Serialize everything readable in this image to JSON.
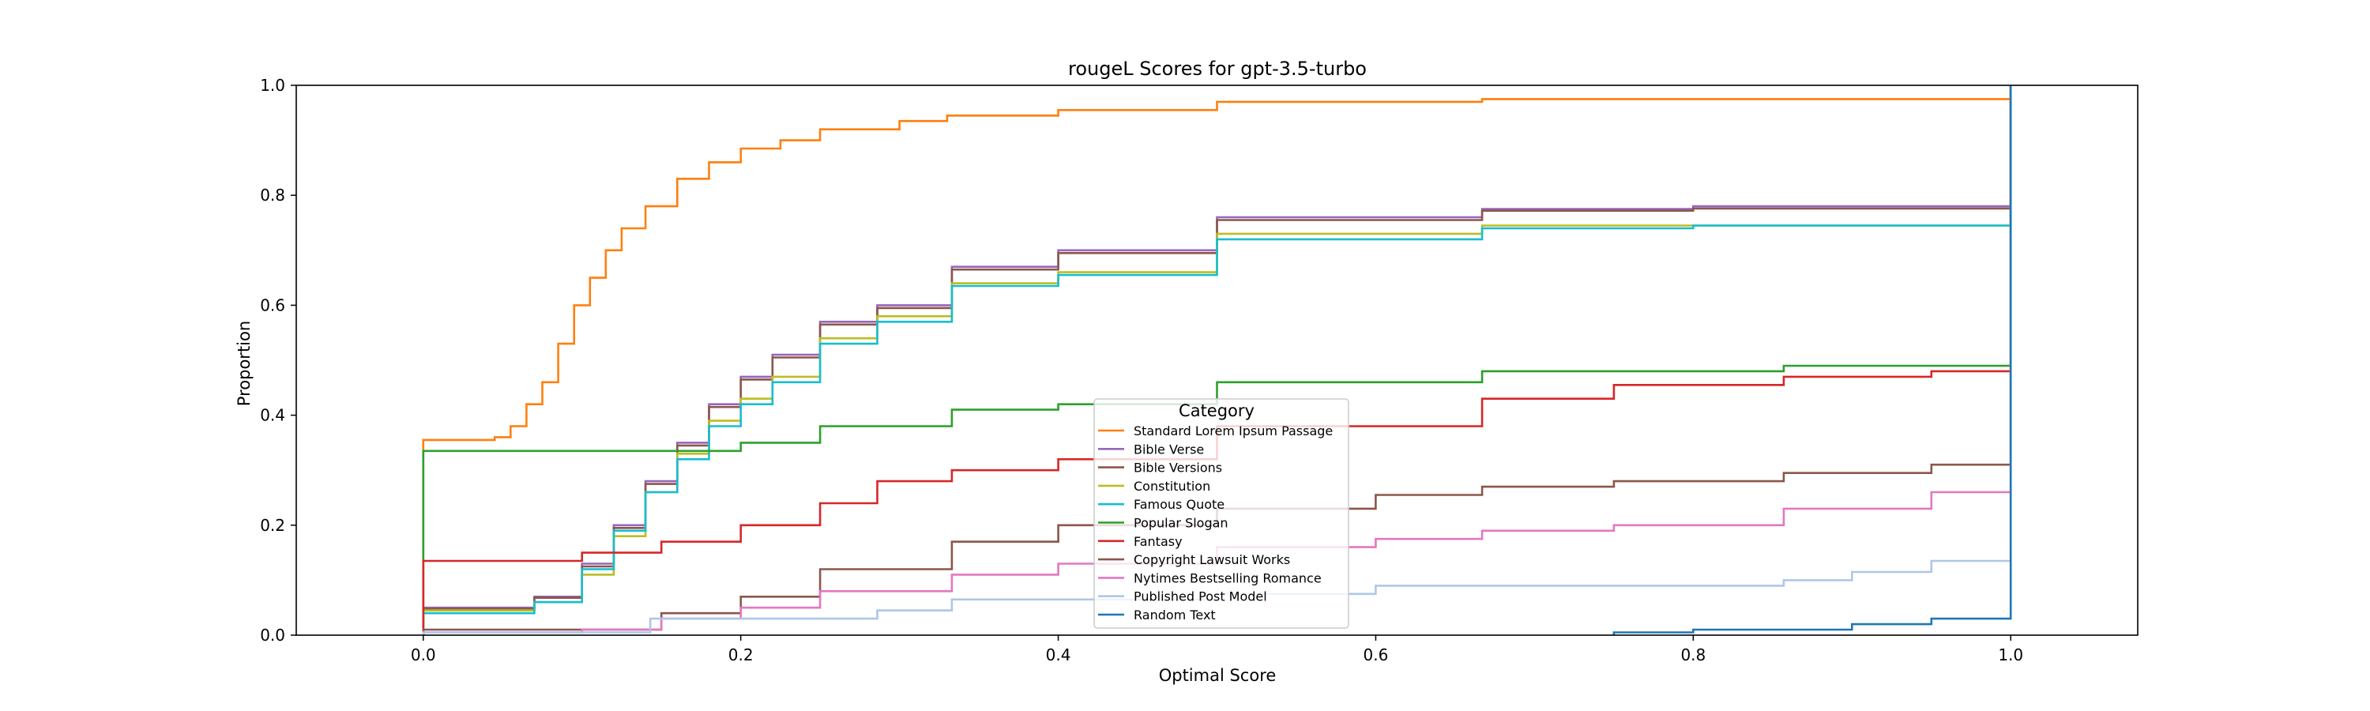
{
  "chart_data": {
    "type": "line",
    "title": "rougeL Scores for gpt-3.5-turbo",
    "xlabel": "Optimal Score",
    "ylabel": "Proportion",
    "xlim": [
      -0.08,
      1.08
    ],
    "ylim": [
      0,
      1.0
    ],
    "xticks": [
      "0.0",
      "0.2",
      "0.4",
      "0.6",
      "0.8",
      "1.0"
    ],
    "yticks": [
      "0.0",
      "0.2",
      "0.4",
      "0.6",
      "0.8",
      "1.0"
    ],
    "grid": false,
    "legend": {
      "title": "Category",
      "placement": "lower-center"
    },
    "series": [
      {
        "name": "Standard Lorem Ipsum Passage",
        "color": "#ff7f0e",
        "points": [
          [
            0,
            0
          ],
          [
            0,
            0.355
          ],
          [
            0.035,
            0.355
          ],
          [
            0.045,
            0.36
          ],
          [
            0.055,
            0.38
          ],
          [
            0.065,
            0.42
          ],
          [
            0.075,
            0.46
          ],
          [
            0.085,
            0.53
          ],
          [
            0.095,
            0.6
          ],
          [
            0.105,
            0.65
          ],
          [
            0.115,
            0.7
          ],
          [
            0.125,
            0.74
          ],
          [
            0.14,
            0.78
          ],
          [
            0.16,
            0.83
          ],
          [
            0.18,
            0.86
          ],
          [
            0.2,
            0.885
          ],
          [
            0.225,
            0.9
          ],
          [
            0.25,
            0.92
          ],
          [
            0.3,
            0.935
          ],
          [
            0.33,
            0.945
          ],
          [
            0.4,
            0.955
          ],
          [
            0.5,
            0.97
          ],
          [
            0.667,
            0.975
          ],
          [
            0.8,
            0.975
          ],
          [
            1.0,
            0.975
          ],
          [
            1.0,
            1.0
          ]
        ]
      },
      {
        "name": "Bible Verse",
        "color": "#9467bd",
        "points": [
          [
            0,
            0
          ],
          [
            0,
            0.05
          ],
          [
            0.04,
            0.05
          ],
          [
            0.07,
            0.07
          ],
          [
            0.1,
            0.13
          ],
          [
            0.12,
            0.2
          ],
          [
            0.14,
            0.28
          ],
          [
            0.16,
            0.35
          ],
          [
            0.18,
            0.42
          ],
          [
            0.2,
            0.47
          ],
          [
            0.22,
            0.51
          ],
          [
            0.25,
            0.57
          ],
          [
            0.286,
            0.6
          ],
          [
            0.333,
            0.67
          ],
          [
            0.4,
            0.7
          ],
          [
            0.5,
            0.76
          ],
          [
            0.667,
            0.775
          ],
          [
            0.8,
            0.78
          ],
          [
            1.0,
            0.78
          ],
          [
            1.0,
            1.0
          ]
        ]
      },
      {
        "name": "Bible Versions",
        "color": "#8c564b",
        "points": [
          [
            0,
            0
          ],
          [
            0,
            0.048
          ],
          [
            0.04,
            0.048
          ],
          [
            0.07,
            0.068
          ],
          [
            0.1,
            0.125
          ],
          [
            0.12,
            0.195
          ],
          [
            0.14,
            0.275
          ],
          [
            0.16,
            0.345
          ],
          [
            0.18,
            0.415
          ],
          [
            0.2,
            0.465
          ],
          [
            0.22,
            0.505
          ],
          [
            0.25,
            0.565
          ],
          [
            0.286,
            0.595
          ],
          [
            0.333,
            0.665
          ],
          [
            0.4,
            0.695
          ],
          [
            0.5,
            0.755
          ],
          [
            0.667,
            0.772
          ],
          [
            0.8,
            0.776
          ],
          [
            1.0,
            0.776
          ],
          [
            1.0,
            1.0
          ]
        ]
      },
      {
        "name": "Constitution",
        "color": "#bcbd22",
        "points": [
          [
            0,
            0
          ],
          [
            0,
            0.045
          ],
          [
            0.04,
            0.045
          ],
          [
            0.07,
            0.06
          ],
          [
            0.1,
            0.11
          ],
          [
            0.12,
            0.18
          ],
          [
            0.14,
            0.26
          ],
          [
            0.16,
            0.33
          ],
          [
            0.18,
            0.39
          ],
          [
            0.2,
            0.43
          ],
          [
            0.22,
            0.47
          ],
          [
            0.25,
            0.54
          ],
          [
            0.286,
            0.58
          ],
          [
            0.333,
            0.64
          ],
          [
            0.4,
            0.66
          ],
          [
            0.5,
            0.73
          ],
          [
            0.667,
            0.745
          ],
          [
            0.8,
            0.745
          ],
          [
            1.0,
            0.748
          ],
          [
            1.0,
            1.0
          ]
        ]
      },
      {
        "name": "Famous Quote",
        "color": "#17becf",
        "points": [
          [
            0,
            0
          ],
          [
            0,
            0.04
          ],
          [
            0.04,
            0.04
          ],
          [
            0.07,
            0.06
          ],
          [
            0.1,
            0.12
          ],
          [
            0.12,
            0.19
          ],
          [
            0.14,
            0.26
          ],
          [
            0.16,
            0.32
          ],
          [
            0.18,
            0.38
          ],
          [
            0.2,
            0.42
          ],
          [
            0.22,
            0.46
          ],
          [
            0.25,
            0.53
          ],
          [
            0.286,
            0.57
          ],
          [
            0.333,
            0.635
          ],
          [
            0.4,
            0.655
          ],
          [
            0.5,
            0.72
          ],
          [
            0.667,
            0.74
          ],
          [
            0.8,
            0.745
          ],
          [
            1.0,
            0.748
          ],
          [
            1.0,
            1.0
          ]
        ]
      },
      {
        "name": "Popular Slogan",
        "color": "#2ca02c",
        "points": [
          [
            0,
            0
          ],
          [
            0,
            0.335
          ],
          [
            0.2,
            0.335
          ],
          [
            0.2,
            0.35
          ],
          [
            0.25,
            0.38
          ],
          [
            0.333,
            0.41
          ],
          [
            0.4,
            0.42
          ],
          [
            0.5,
            0.46
          ],
          [
            0.667,
            0.48
          ],
          [
            0.857,
            0.49
          ],
          [
            1.0,
            0.49
          ],
          [
            1.0,
            1.0
          ]
        ]
      },
      {
        "name": "Fantasy",
        "color": "#d62728",
        "points": [
          [
            0,
            0
          ],
          [
            0,
            0.135
          ],
          [
            0.08,
            0.135
          ],
          [
            0.1,
            0.15
          ],
          [
            0.15,
            0.17
          ],
          [
            0.2,
            0.2
          ],
          [
            0.25,
            0.24
          ],
          [
            0.286,
            0.28
          ],
          [
            0.333,
            0.3
          ],
          [
            0.4,
            0.32
          ],
          [
            0.5,
            0.38
          ],
          [
            0.667,
            0.43
          ],
          [
            0.75,
            0.455
          ],
          [
            0.857,
            0.47
          ],
          [
            0.95,
            0.48
          ],
          [
            1.0,
            0.48
          ],
          [
            1.0,
            1.0
          ]
        ]
      },
      {
        "name": "Copyright Lawsuit Works",
        "color": "#8c564b",
        "points": [
          [
            0,
            0
          ],
          [
            0,
            0.01
          ],
          [
            0.08,
            0.01
          ],
          [
            0.15,
            0.04
          ],
          [
            0.2,
            0.07
          ],
          [
            0.25,
            0.12
          ],
          [
            0.333,
            0.17
          ],
          [
            0.4,
            0.2
          ],
          [
            0.5,
            0.23
          ],
          [
            0.6,
            0.255
          ],
          [
            0.667,
            0.27
          ],
          [
            0.75,
            0.28
          ],
          [
            0.857,
            0.295
          ],
          [
            0.95,
            0.31
          ],
          [
            1.0,
            0.315
          ],
          [
            1.0,
            1.0
          ]
        ]
      },
      {
        "name": "Nytimes Bestselling Romance",
        "color": "#e377c2",
        "points": [
          [
            0,
            0
          ],
          [
            0,
            0.005
          ],
          [
            0.1,
            0.01
          ],
          [
            0.15,
            0.03
          ],
          [
            0.2,
            0.05
          ],
          [
            0.25,
            0.08
          ],
          [
            0.333,
            0.11
          ],
          [
            0.4,
            0.13
          ],
          [
            0.5,
            0.16
          ],
          [
            0.6,
            0.175
          ],
          [
            0.667,
            0.19
          ],
          [
            0.75,
            0.2
          ],
          [
            0.857,
            0.23
          ],
          [
            0.95,
            0.26
          ],
          [
            1.0,
            0.275
          ],
          [
            1.0,
            1.0
          ]
        ]
      },
      {
        "name": "Published Post Model",
        "color": "#aec7e8",
        "points": [
          [
            0,
            0
          ],
          [
            0,
            0.005
          ],
          [
            0.125,
            0.005
          ],
          [
            0.143,
            0.03
          ],
          [
            0.286,
            0.03
          ],
          [
            0.286,
            0.045
          ],
          [
            0.333,
            0.065
          ],
          [
            0.5,
            0.075
          ],
          [
            0.6,
            0.09
          ],
          [
            0.8,
            0.09
          ],
          [
            0.846,
            0.09
          ],
          [
            0.857,
            0.1
          ],
          [
            0.9,
            0.115
          ],
          [
            0.95,
            0.135
          ],
          [
            1.0,
            0.135
          ],
          [
            1.0,
            1.0
          ]
        ]
      },
      {
        "name": "Random Text",
        "color": "#1f77b4",
        "points": [
          [
            0.75,
            0
          ],
          [
            0.75,
            0.005
          ],
          [
            0.8,
            0.005
          ],
          [
            0.8,
            0.01
          ],
          [
            0.9,
            0.02
          ],
          [
            0.95,
            0.03
          ],
          [
            1.0,
            0.035
          ],
          [
            1.0,
            1.0
          ]
        ]
      }
    ]
  }
}
